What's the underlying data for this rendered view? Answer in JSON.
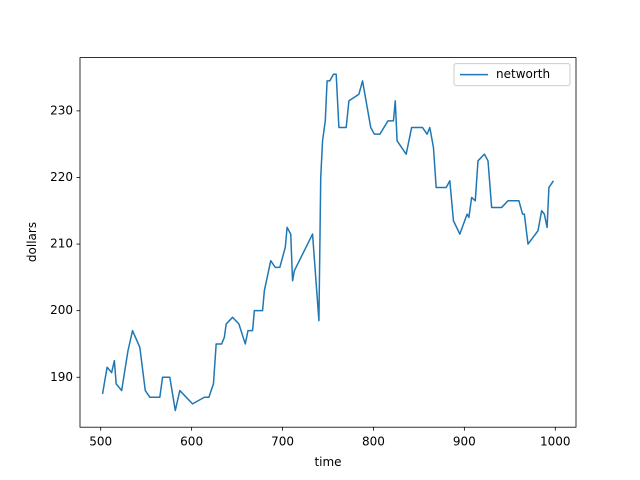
{
  "chart_data": {
    "type": "line",
    "x_label": "time",
    "y_label": "dollars",
    "x": [
      502,
      507,
      512,
      515,
      517,
      523,
      530,
      535,
      543,
      549,
      554,
      565,
      568,
      576,
      582,
      587,
      601,
      614,
      619,
      624,
      627,
      633,
      636,
      638,
      645,
      652,
      659,
      662,
      667,
      669,
      678,
      680,
      687,
      692,
      697,
      703,
      705,
      709,
      711,
      713,
      733,
      740,
      742,
      744,
      747,
      749,
      752,
      756,
      759,
      762,
      770,
      773,
      784,
      788,
      797,
      801,
      807,
      816,
      822,
      824,
      826,
      836,
      842,
      854,
      859,
      862,
      866,
      869,
      880,
      884,
      888,
      895,
      903,
      905,
      908,
      912,
      915,
      922,
      926,
      930,
      941,
      948,
      960,
      964,
      966,
      970,
      981,
      985,
      988,
      991,
      993,
      998
    ],
    "series": [
      {
        "name": "networth",
        "color": "#1f77b4",
        "values": [
          187.5,
          191.5,
          190.7,
          192.5,
          189,
          188,
          194,
          197,
          194.5,
          188,
          187,
          187,
          190,
          190,
          185,
          188,
          186,
          187,
          187,
          189,
          195,
          195,
          196,
          198,
          199,
          198,
          195,
          197,
          197,
          200,
          200,
          203,
          207.5,
          206.5,
          206.5,
          209.5,
          212.5,
          211.5,
          204.5,
          206,
          211.5,
          198.5,
          220,
          225.5,
          228.5,
          234.5,
          234.5,
          235.5,
          235.5,
          227.5,
          227.5,
          231.5,
          232.5,
          234.5,
          227.5,
          226.5,
          226.5,
          228.5,
          228.5,
          231.5,
          225.5,
          223.5,
          227.5,
          227.5,
          226.5,
          227.5,
          224.5,
          218.5,
          218.5,
          219.5,
          213.5,
          211.5,
          214.5,
          214,
          217,
          216.5,
          222.5,
          223.5,
          222.5,
          215.5,
          215.5,
          216.5,
          216.5,
          214.5,
          214.5,
          210,
          212,
          215,
          214.5,
          212.5,
          218.5,
          219.5
        ]
      }
    ],
    "xlim": [
      477.2,
      1022.8
    ],
    "ylim": [
      182.5,
      238
    ],
    "xticks": [
      500,
      600,
      700,
      800,
      900,
      1000
    ],
    "yticks": [
      190,
      200,
      210,
      220,
      230
    ],
    "legend": "upper right"
  }
}
